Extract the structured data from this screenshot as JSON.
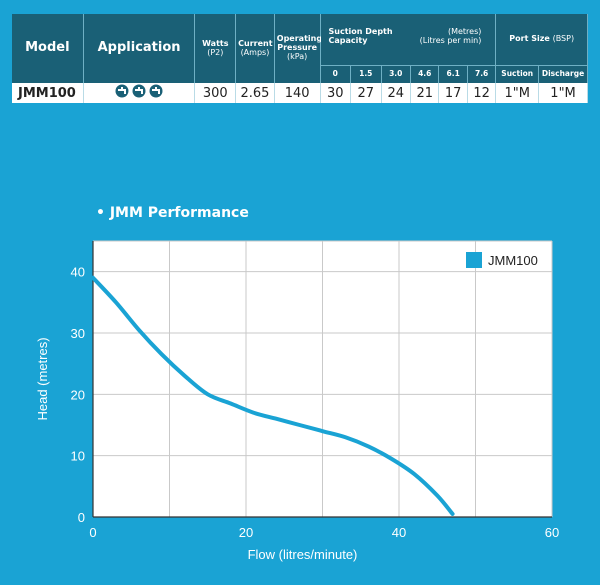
{
  "spec_table": {
    "headers": {
      "model": "Model",
      "application": "Application",
      "watts": "Watts",
      "watts_unit": "(P2)",
      "current": "Current",
      "current_unit": "(Amps)",
      "pressure_line1": "Operating",
      "pressure_line2": "Pressure",
      "pressure_unit": "(kPa)",
      "suction_left_1": "Suction Depth",
      "suction_left_2": "Capacity",
      "suction_right_1": "(Metres)",
      "suction_right_2": "(Litres per min)",
      "port_size": "Port Size",
      "port_unit": "(BSP)",
      "depths": [
        "0",
        "1.5",
        "3.0",
        "4.6",
        "6.1",
        "7.6"
      ],
      "suction": "Suction",
      "discharge": "Discharge"
    },
    "row": {
      "model": "JMM100",
      "application_icons": [
        "tap-icon",
        "tap-icon",
        "tap-icon"
      ],
      "watts": "300",
      "current": "2.65",
      "pressure": "140",
      "capacities": [
        "30",
        "27",
        "24",
        "21",
        "17",
        "12"
      ],
      "suction": "1\"M",
      "discharge": "1\"M"
    }
  },
  "chart_title": "• JMM Performance",
  "chart_data": {
    "type": "line",
    "title": "JMM Performance",
    "xlabel": "Flow (litres/minute)",
    "ylabel": "Head (metres)",
    "xlim": [
      0,
      60
    ],
    "ylim": [
      0,
      45
    ],
    "xticks": [
      0,
      20,
      40,
      60
    ],
    "yticks": [
      0,
      10,
      20,
      30,
      40
    ],
    "grid": true,
    "legend_position": "top-right",
    "series": [
      {
        "name": "JMM100",
        "color": "#1aa3d4",
        "points": [
          [
            0,
            39
          ],
          [
            3,
            35
          ],
          [
            6,
            30.5
          ],
          [
            9,
            26.5
          ],
          [
            12,
            23
          ],
          [
            15,
            20
          ],
          [
            18,
            18.5
          ],
          [
            21,
            17
          ],
          [
            24,
            16
          ],
          [
            27,
            15
          ],
          [
            30,
            14
          ],
          [
            33,
            13
          ],
          [
            36,
            11.5
          ],
          [
            39,
            9.5
          ],
          [
            42,
            7
          ],
          [
            45,
            3.5
          ],
          [
            47,
            0.5
          ]
        ]
      }
    ]
  },
  "colors": {
    "background": "#1aa3d4",
    "header": "#1a6076",
    "plot_bg": "#ffffff",
    "grid": "#c9c9c9"
  }
}
